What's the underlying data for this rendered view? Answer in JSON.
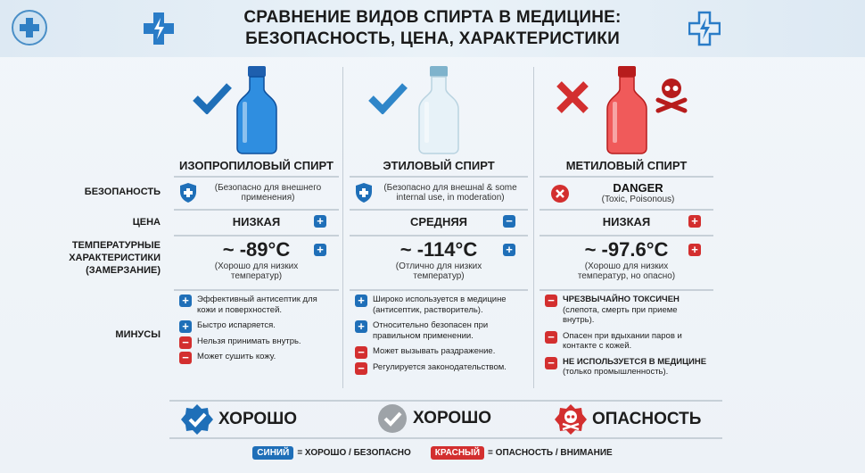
{
  "title": {
    "line1": "СРАВНЕНИЕ ВИДОВ СПИРТА В МЕДИЦИНЕ:",
    "line2": "БЕЗОПАСНОСТЬ, ЦЕНА, ХАРАКТЕРИСТИКИ"
  },
  "row_labels": {
    "safety": "БЕЗОПАНОСТЬ",
    "price": "ЦЕНА",
    "temp": "ТЕМПЕРАТУРНЫЕ ХАРАКТЕРИСТИКИ (ЗАМЕРЗАНИЕ)",
    "cons": "МИНУСЫ"
  },
  "colors": {
    "blue": "#1f6fb8",
    "red": "#d32f2f",
    "gray": "#9ea3a8"
  },
  "columns": [
    {
      "name": "ИЗОПРОПИЛОВЫЙ СПИРТ",
      "status_icon": "check-icon",
      "safety_icon": "shield-plus-icon",
      "safety_title": "",
      "safety_note": "(Безопасно для внешнего применения)",
      "price": "НИЗКАЯ",
      "price_sign": "+",
      "temp": "~ -89°C",
      "temp_sign": "+",
      "temp_note": "(Хорошо для низких температур)",
      "items": [
        {
          "sign": "+",
          "text": "Эффективный антисептик для кожи и поверхностей."
        },
        {
          "sign": "+",
          "text": "Быстро испаряется."
        },
        {
          "sign": "−",
          "text": "Нельзя принимать внутрь."
        },
        {
          "sign": "−",
          "text": "Может сушить кожу."
        }
      ],
      "badge": "ХОРОШО",
      "badge_icon": "blue-check-badge-icon"
    },
    {
      "name": "ЭТИЛОВЫЙ СПИРТ",
      "status_icon": "check-icon",
      "safety_icon": "shield-plus-icon",
      "safety_title": "",
      "safety_note": "(Безопасно для внешнal & some internal use, in moderation)",
      "price": "СРЕДНЯЯ",
      "price_sign": "−",
      "temp": "~ -114°C",
      "temp_sign": "+",
      "temp_note": "(Отлично для низких температур)",
      "items": [
        {
          "sign": "+",
          "text": "Широко используется в медицине (антисептик, растворитель)."
        },
        {
          "sign": "+",
          "text": "Относительно безопасен при правильном применении."
        },
        {
          "sign": "−",
          "text": "Может вызывать раздражение."
        },
        {
          "sign": "−",
          "text": "Регулируется законодательством."
        }
      ],
      "badge": "ХОРОШО",
      "badge_icon": "gray-check-badge-icon"
    },
    {
      "name": "МЕТИЛОВЫЙ СПИРТ",
      "status_icon": "cross-icon",
      "safety_icon": "x-circle-icon",
      "safety_title": "DANGER",
      "safety_note": "(Toxic, Poisonous)",
      "price": "НИЗКАЯ",
      "price_sign": "+",
      "temp": "~ -97.6°C",
      "temp_sign": "+",
      "temp_note": "(Хорошо для низких температур, но опасно)",
      "items": [
        {
          "sign": "−",
          "title": "ЧРЕЗВЫЧАЙНО ТОКСИЧЕН",
          "text": "(слепота, смерть при приеме внутрь)."
        },
        {
          "sign": "−",
          "title": "",
          "text": "Опасен при вдыхании паров и контакте с кожей."
        },
        {
          "sign": "−",
          "title": "НЕ ИСПОЛЬЗУЕТСЯ В МЕДИЦИНЕ",
          "text": "(только промышленность)."
        }
      ],
      "badge": "ОПАСНОСТЬ",
      "badge_icon": "skull-badge-icon"
    }
  ],
  "legend": {
    "blue_label": "СИНИЙ",
    "blue_text": "= ХОРОШО / БЕЗОПАСНО",
    "red_label": "КРАСНЫЙ",
    "red_text": "= ОПАСНОСТЬ / ВНИМАНИЕ"
  }
}
